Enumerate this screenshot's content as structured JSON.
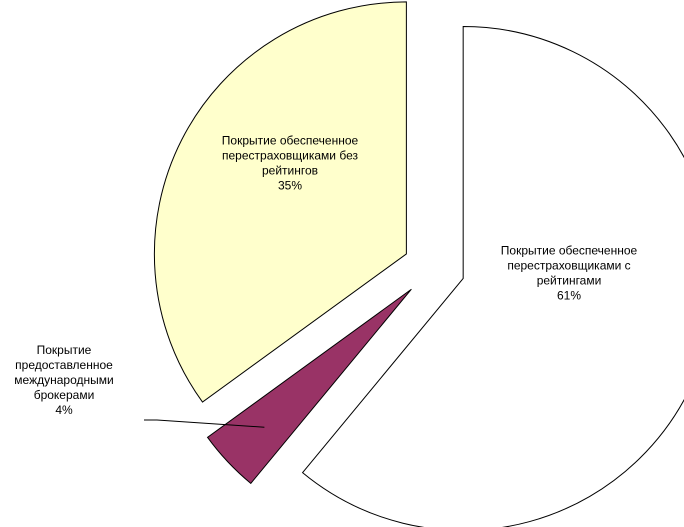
{
  "chart_data": {
    "type": "pie",
    "title": "",
    "slices": [
      {
        "label_lines": [
          "Покрытие обеспеченное",
          "перестраховщиками с",
          "рейтингами"
        ],
        "value": 61,
        "value_label": "61%",
        "color": "#ffffff"
      },
      {
        "label_lines": [
          "Покрытие",
          "предоставленное",
          "международными",
          "брокерами"
        ],
        "value": 4,
        "value_label": "4%",
        "color": "#993366"
      },
      {
        "label_lines": [
          "Покрытие обеспеченное",
          "перестраховщиками без",
          "рейтингов"
        ],
        "value": 35,
        "value_label": "35%",
        "color": "#ffffcc"
      }
    ],
    "start_angle_deg": 0,
    "direction": "clockwise",
    "exploded": true,
    "legend": "none"
  }
}
